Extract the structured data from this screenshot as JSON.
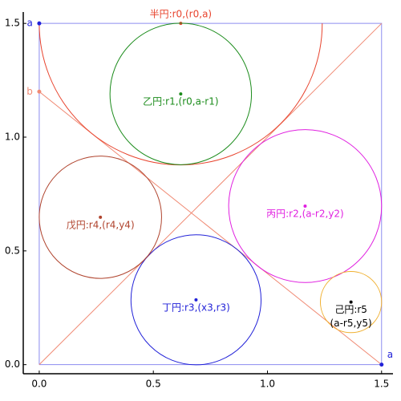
{
  "chart_data": {
    "type": "geometry",
    "xlim": [
      -0.07,
      1.55
    ],
    "ylim": [
      -0.04,
      1.55
    ],
    "xticks": [
      {
        "value": 0,
        "label": "0.0"
      },
      0.5,
      {
        "value": 1,
        "label": "1.0"
      },
      1.5
    ],
    "yticks": [
      {
        "value": 0,
        "label": "0.0"
      },
      0.5,
      {
        "value": 1,
        "label": "1.0"
      },
      1.5
    ],
    "lines": [
      {
        "color": "#8c8cf0",
        "x": [
          0,
          1.5,
          1.5,
          0,
          0
        ],
        "y": [
          0,
          0,
          1.5,
          1.5,
          0
        ]
      },
      {
        "color": "#f08a74",
        "x": [
          0,
          1.5
        ],
        "y": [
          0,
          1.5
        ]
      },
      {
        "color": "#f08a74",
        "x": [
          0,
          1.5
        ],
        "y": [
          1.2,
          0
        ]
      }
    ],
    "circles": [
      {
        "label": [
          "半円:r0,(r0,a)"
        ],
        "color": "#e8442e",
        "label_color": "#e8442e",
        "x": 0.62,
        "y": 1.5,
        "r": 0.62,
        "arc": "lower"
      },
      {
        "label": [
          "乙円:r1,(r0,a-r1)"
        ],
        "color": "#1c8c1c",
        "label_color": "#1c8c1c",
        "x": 0.62,
        "y": 1.19,
        "r": 0.31,
        "arc": "full"
      },
      {
        "label": [
          "丙円:r2,(a-r2,y2)"
        ],
        "color": "#e020e0",
        "label_color": "#e020e0",
        "x": 1.165,
        "y": 0.697,
        "r": 0.335,
        "arc": "full"
      },
      {
        "label": [
          "丁円:r3,(x3,r3)"
        ],
        "color": "#2222d8",
        "label_color": "#2222d8",
        "x": 0.687,
        "y": 0.285,
        "r": 0.285,
        "arc": "full"
      },
      {
        "label": [
          "戊円:r4,(r4,y4)"
        ],
        "color": "#b0442e",
        "label_color": "#b0442e",
        "x": 0.268,
        "y": 0.648,
        "r": 0.268,
        "arc": "full"
      },
      {
        "label": [
          "己円:r5",
          "(a-r5,y5)"
        ],
        "color": "#f0b030",
        "label_color": "#000000",
        "x": 1.366,
        "y": 0.275,
        "r": 0.134,
        "arc": "full"
      }
    ],
    "points": [
      {
        "label": "a",
        "color": "#2222d8",
        "x": 0,
        "y": 1.5
      },
      {
        "label": "a",
        "color": "#2222d8",
        "x": 1.5,
        "y": 0
      },
      {
        "label": "b",
        "color": "#f08a74",
        "x": 0,
        "y": 1.2
      }
    ]
  }
}
